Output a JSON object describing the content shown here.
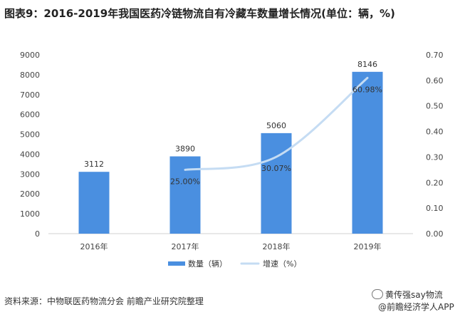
{
  "title": "图表9：2016-2019年我国医药冷链物流自有冷藏车数量增长情况(单位：辆，%)",
  "source": "资料来源：中物联医药物流分会 前瞻产业研究院整理",
  "footer": {
    "wechat_label": "黄传强say物流",
    "app_label": "@前瞻经济学人APP"
  },
  "chart_data": {
    "type": "bar",
    "categories": [
      "2016年",
      "2017年",
      "2018年",
      "2019年"
    ],
    "series": [
      {
        "name": "数量（辆）",
        "type": "bar",
        "axis": "left",
        "color": "#4a8fe0",
        "values": [
          3112,
          3890,
          5060,
          8146
        ],
        "labels": [
          "3112",
          "3890",
          "5060",
          "8146"
        ]
      },
      {
        "name": "增速（%）",
        "type": "line",
        "axis": "right",
        "color": "#c5dcf3",
        "values": [
          null,
          0.25,
          0.3007,
          0.6098
        ],
        "labels": [
          "",
          "25.00%",
          "30.07%",
          "60.98%"
        ]
      }
    ],
    "y_left": {
      "min": 0,
      "max": 9000,
      "step": 1000,
      "ticks": [
        "0",
        "1000",
        "2000",
        "3000",
        "4000",
        "5000",
        "6000",
        "7000",
        "8000",
        "9000"
      ]
    },
    "y_right": {
      "min": 0,
      "max": 0.7,
      "step": 0.1,
      "ticks": [
        "0.00",
        "0.10",
        "0.20",
        "0.30",
        "0.40",
        "0.50",
        "0.60",
        "0.70"
      ]
    },
    "grid": false,
    "legend": "bottom",
    "legend_labels": [
      "数量（辆）",
      "增速（%）"
    ]
  }
}
